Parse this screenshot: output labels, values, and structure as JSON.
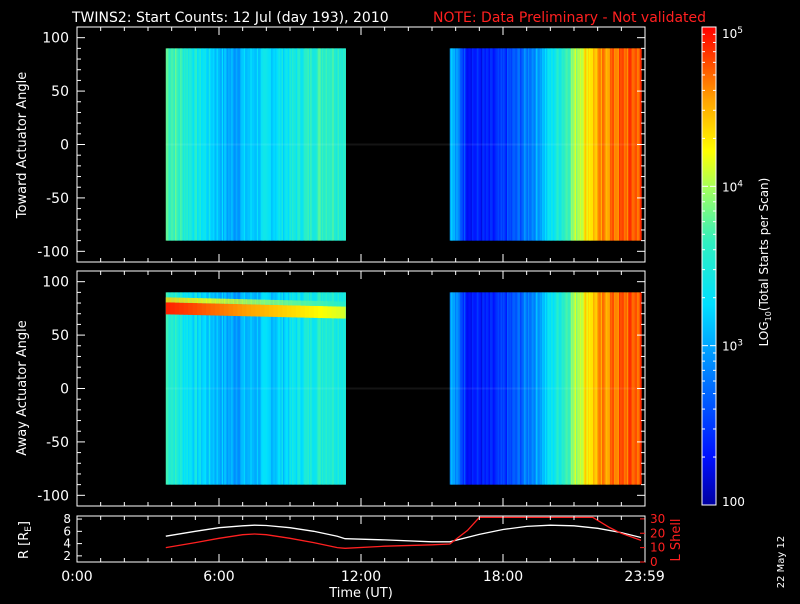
{
  "title": {
    "main": "TWINS2: Start Counts: 12 Jul (day 193), 2010",
    "note": "NOTE: Data Preliminary - Not validated",
    "note_color": "#ff2020"
  },
  "date_stamp": "22 May 12",
  "colorbar": {
    "label": "LOG10(Total Starts per Scan)",
    "label_main": "LOG",
    "label_sub": "10",
    "label_rest": "(Total Starts per Scan)",
    "ticks": [
      {
        "value": 100,
        "label": "100",
        "base": "100",
        "exp": ""
      },
      {
        "value": 1000,
        "label": "10^3",
        "base": "10",
        "exp": "3"
      },
      {
        "value": 10000,
        "label": "10^4",
        "base": "10",
        "exp": "4"
      },
      {
        "value": 100000,
        "label": "10^5",
        "base": "10",
        "exp": "5"
      }
    ],
    "range": [
      100,
      100000
    ],
    "scale": "log",
    "colormap": "rainbow (blue-cyan-green-yellow-orange-red)"
  },
  "x_axis": {
    "label": "Time (UT)",
    "range_hours": [
      0,
      24
    ],
    "ticks": [
      "0:00",
      "6:00",
      "12:00",
      "18:00",
      "23:59"
    ]
  },
  "chart_data": [
    {
      "type": "heatmap",
      "panel": "toward",
      "ylabel": "Toward Actuator Angle",
      "ylim": [
        -110,
        110
      ],
      "yticks": [
        "100",
        "50",
        "0",
        "-50",
        "-100"
      ],
      "angle_range": [
        -90,
        90
      ],
      "data_intervals": [
        {
          "start": "3:45",
          "end": "11:20",
          "start_h": 3.75,
          "end_h": 11.33
        },
        {
          "start": "15:45",
          "end": "23:50",
          "start_h": 15.75,
          "end_h": 23.83
        }
      ],
      "time_profile": [
        {
          "t": 3.75,
          "log": 3.8
        },
        {
          "t": 4.5,
          "log": 3.6
        },
        {
          "t": 5.5,
          "log": 3.3
        },
        {
          "t": 6.5,
          "log": 3.0
        },
        {
          "t": 7.5,
          "log": 3.2
        },
        {
          "t": 8.5,
          "log": 3.3
        },
        {
          "t": 9.5,
          "log": 3.5
        },
        {
          "t": 10.5,
          "log": 3.7
        },
        {
          "t": 11.33,
          "log": 3.6
        },
        {
          "t": 15.75,
          "log": 3.2
        },
        {
          "t": 16.5,
          "log": 2.4
        },
        {
          "t": 17.5,
          "log": 2.3
        },
        {
          "t": 18.5,
          "log": 2.6
        },
        {
          "t": 19.5,
          "log": 3.0
        },
        {
          "t": 20.5,
          "log": 3.6
        },
        {
          "t": 21.5,
          "log": 4.3
        },
        {
          "t": 22.5,
          "log": 4.65
        },
        {
          "t": 23.5,
          "log": 4.75
        }
      ]
    },
    {
      "type": "heatmap",
      "panel": "away",
      "ylabel": "Away Actuator Angle",
      "ylim": [
        -110,
        110
      ],
      "yticks": [
        "100",
        "50",
        "0",
        "-50",
        "-100"
      ],
      "angle_range": [
        -90,
        90
      ],
      "data_intervals": [
        {
          "start": "3:45",
          "end": "11:20",
          "start_h": 3.75,
          "end_h": 11.33
        },
        {
          "start": "15:45",
          "end": "23:50",
          "start_h": 15.75,
          "end_h": 23.83
        }
      ],
      "enhanced_band": {
        "angle": 75,
        "log_peak": 4.9,
        "log_end": 4.1,
        "t_start": 3.75,
        "t_end": 11.33
      },
      "time_profile": [
        {
          "t": 3.75,
          "log": 3.7
        },
        {
          "t": 4.5,
          "log": 3.4
        },
        {
          "t": 5.5,
          "log": 3.2
        },
        {
          "t": 6.5,
          "log": 3.0
        },
        {
          "t": 7.5,
          "log": 3.1
        },
        {
          "t": 8.5,
          "log": 3.2
        },
        {
          "t": 9.5,
          "log": 3.4
        },
        {
          "t": 10.5,
          "log": 3.6
        },
        {
          "t": 11.33,
          "log": 3.5
        },
        {
          "t": 15.75,
          "log": 3.1
        },
        {
          "t": 16.5,
          "log": 2.4
        },
        {
          "t": 17.5,
          "log": 2.3
        },
        {
          "t": 18.5,
          "log": 2.6
        },
        {
          "t": 19.5,
          "log": 3.0
        },
        {
          "t": 20.5,
          "log": 3.6
        },
        {
          "t": 21.5,
          "log": 4.3
        },
        {
          "t": 22.5,
          "log": 4.65
        },
        {
          "t": 23.5,
          "log": 4.75
        }
      ]
    },
    {
      "type": "line",
      "panel": "orbit",
      "ylabel_left": "R [RE]",
      "ylabel_left_main": "R [R",
      "ylabel_left_sub": "E",
      "ylabel_left_end": "]",
      "ylabel_right": "L Shell",
      "yticks_left": [
        "8",
        "6",
        "4",
        "2"
      ],
      "yticks_right": [
        "30",
        "20",
        "10",
        "0"
      ],
      "ylim_left": [
        1,
        8.5
      ],
      "ylim_right": [
        0,
        32
      ],
      "series": [
        {
          "name": "R",
          "color": "#ffffff",
          "axis": "left",
          "x": [
            3.75,
            5,
            6,
            7,
            7.5,
            8,
            9,
            10,
            11,
            11.33,
            13,
            15,
            15.75,
            17,
            18,
            19,
            20,
            21,
            22,
            23,
            23.83
          ],
          "y": [
            5.2,
            6.0,
            6.6,
            6.9,
            7.0,
            6.95,
            6.6,
            6.0,
            5.2,
            4.8,
            4.6,
            4.3,
            4.3,
            5.5,
            6.3,
            6.8,
            7.0,
            6.9,
            6.5,
            5.8,
            5.0
          ]
        },
        {
          "name": "L Shell",
          "color": "#ff2020",
          "axis": "right",
          "x": [
            3.75,
            5,
            6,
            7,
            7.5,
            8,
            9,
            10,
            11,
            11.33,
            13,
            15,
            15.75,
            16.5,
            17.0,
            21.8,
            22.5,
            23,
            23.83
          ],
          "y": [
            10,
            13.5,
            16.5,
            19,
            19.5,
            19,
            16.5,
            13.5,
            10,
            9.5,
            11,
            12,
            12.5,
            22,
            31,
            31,
            24,
            20,
            15
          ]
        }
      ]
    }
  ]
}
